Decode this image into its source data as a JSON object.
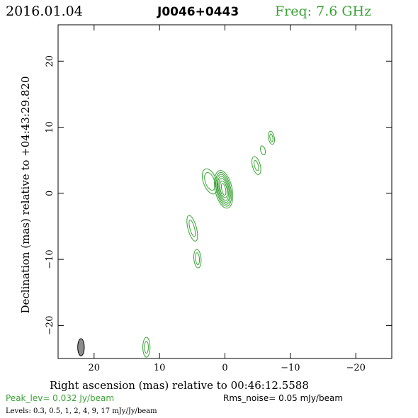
{
  "header": {
    "date": "2016.01.04",
    "source": "J0046+0443",
    "freq": "Freq: 7.6 GHz"
  },
  "footer": {
    "peak": "Peak_lev=  0.032 Jy/beam",
    "noise": "Rms_noise= 0.05 mJy/beam",
    "levels": "Levels: 0.3, 0.5,    1,    2,    4,    9,   17 mJy/Jy/beam"
  },
  "colors": {
    "contour": "#3aa335",
    "header_freq": "#3aa335",
    "beam_fill": "#8c8c8c",
    "axis": "#000000"
  },
  "chart_data": {
    "type": "contour",
    "xlabel": "Right ascension (mas) relative to 00:46:12.5588",
    "ylabel": "Declination (mas) relative to +04:43:29.820",
    "xlim": [
      25.5,
      -25.5
    ],
    "ylim": [
      -25,
      25.5
    ],
    "xticks": [
      20,
      10,
      0,
      -10,
      -20
    ],
    "xtick_labels": [
      "20",
      "10",
      "0",
      "−10",
      "−20"
    ],
    "yticks": [
      20,
      10,
      0,
      -10,
      -20
    ],
    "ytick_labels": [
      "20",
      "10",
      "0",
      "−10",
      "−20"
    ],
    "levels_mJy": [
      0.3,
      0.5,
      1,
      2,
      4,
      9,
      17
    ],
    "beam": {
      "x": 22,
      "y": -23.3,
      "major": 2.6,
      "minor": 1.0,
      "pa": 0
    },
    "components": [
      {
        "x": 0.2,
        "y": 0.6,
        "rx": [
          1.3,
          1.1,
          0.95,
          0.8,
          0.65,
          0.5,
          0.3
        ],
        "ry": [
          2.9,
          2.6,
          2.3,
          2.0,
          1.7,
          1.3,
          0.9
        ],
        "pa": -12
      },
      {
        "x": 2.3,
        "y": 1.8,
        "rx": [
          1.0,
          0.7
        ],
        "ry": [
          2.0,
          1.4
        ],
        "pa": -20
      },
      {
        "x": 5.0,
        "y": -5.3,
        "rx": [
          0.65,
          0.35
        ],
        "ry": [
          2.0,
          1.3
        ],
        "pa": -15
      },
      {
        "x": 4.2,
        "y": -9.9,
        "rx": [
          0.55,
          0.3
        ],
        "ry": [
          1.4,
          0.9
        ],
        "pa": -5
      },
      {
        "x": -4.8,
        "y": 4.2,
        "rx": [
          0.6,
          0.3
        ],
        "ry": [
          1.4,
          0.8
        ],
        "pa": -15
      },
      {
        "x": -5.8,
        "y": 6.5,
        "rx": [
          0.35
        ],
        "ry": [
          0.7
        ],
        "pa": -15
      },
      {
        "x": -7.1,
        "y": 8.4,
        "rx": [
          0.45,
          0.22
        ],
        "ry": [
          1.0,
          0.6
        ],
        "pa": -10
      },
      {
        "x": 12.0,
        "y": -23.3,
        "rx": [
          0.55,
          0.3
        ],
        "ry": [
          1.5,
          0.9
        ],
        "pa": 0
      }
    ]
  }
}
